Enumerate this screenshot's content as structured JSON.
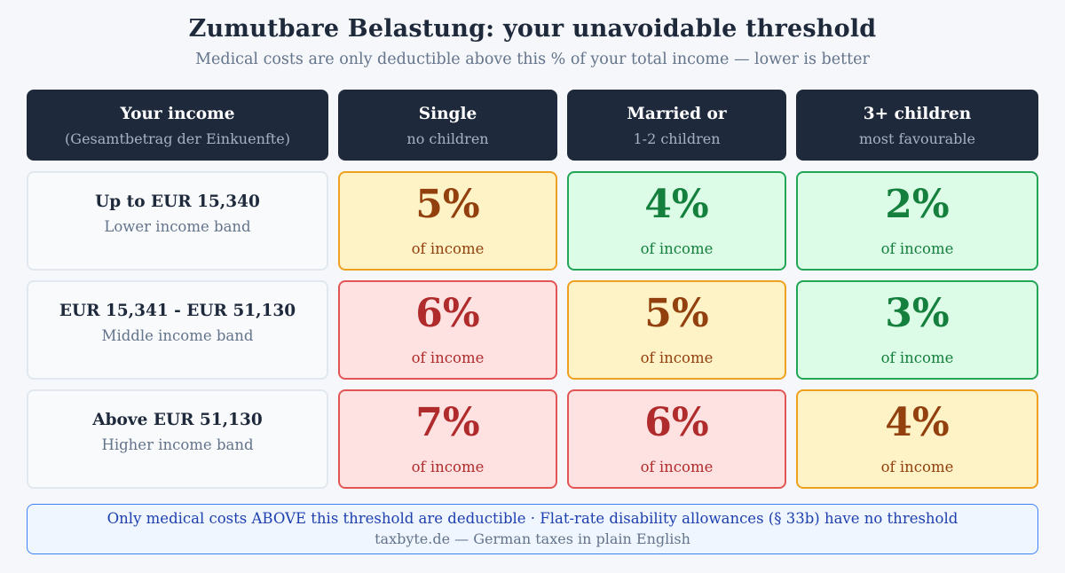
{
  "title": "Zumutbare Belastung: your unavoidable threshold",
  "subtitle": "Medical costs are only deductible above this % of your total income — lower is better",
  "headers": [
    {
      "main": "Your income",
      "sub": "(Gesamtbetrag der Einkuenfte)"
    },
    {
      "main": "Single",
      "sub": "no children"
    },
    {
      "main": "Married or",
      "sub": "1-2 children"
    },
    {
      "main": "3+ children",
      "sub": "most favourable"
    }
  ],
  "rows": [
    {
      "label": "Up to EUR 15,340",
      "band": "Lower income band",
      "cells": [
        {
          "value": "5%",
          "unit": "of income",
          "level": "yellow"
        },
        {
          "value": "4%",
          "unit": "of income",
          "level": "green"
        },
        {
          "value": "2%",
          "unit": "of income",
          "level": "green"
        }
      ]
    },
    {
      "label": "EUR 15,341 - EUR 51,130",
      "band": "Middle income band",
      "cells": [
        {
          "value": "6%",
          "unit": "of income",
          "level": "red"
        },
        {
          "value": "5%",
          "unit": "of income",
          "level": "yellow"
        },
        {
          "value": "3%",
          "unit": "of income",
          "level": "green"
        }
      ]
    },
    {
      "label": "Above EUR 51,130",
      "band": "Higher income band",
      "cells": [
        {
          "value": "7%",
          "unit": "of income",
          "level": "red"
        },
        {
          "value": "6%",
          "unit": "of income",
          "level": "red"
        },
        {
          "value": "4%",
          "unit": "of income",
          "level": "yellow"
        }
      ]
    }
  ],
  "footer": {
    "note": "Only medical costs ABOVE this threshold are deductible · Flat-rate disability allowances (§ 33b) have no threshold",
    "credit": "taxbyte.de — German taxes in plain English"
  },
  "colors": {
    "header_bg": "#1e293b",
    "green": "#15803d",
    "yellow": "#92400e",
    "red": "#b02c2c",
    "footer_border": "#3b82f6"
  }
}
